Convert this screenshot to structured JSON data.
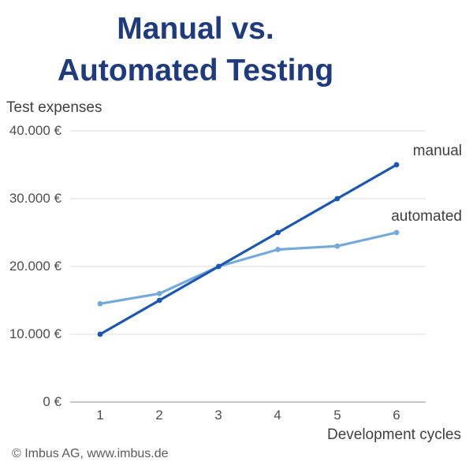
{
  "header": {
    "title_lines": [
      "Manual vs.",
      "Automated Testing"
    ],
    "title_color": "#1f3a7d"
  },
  "footer": {
    "copyright": "© Imbus AG, www.imbus.de"
  },
  "chart_data": {
    "type": "line",
    "title": "Manual vs. Automated Testing",
    "ylabel": "Test expenses",
    "xlabel": "Development cycles",
    "x": [
      1,
      2,
      3,
      4,
      5,
      6
    ],
    "xticks": [
      "1",
      "2",
      "3",
      "4",
      "5",
      "6"
    ],
    "series": [
      {
        "name": "manual",
        "color": "#1b57b2",
        "values": [
          10000,
          15000,
          20000,
          25000,
          30000,
          35000
        ]
      },
      {
        "name": "automated",
        "color": "#74a9db",
        "values": [
          14500,
          16000,
          20000,
          22500,
          23000,
          25000
        ]
      }
    ],
    "yticks": [
      {
        "value": 0,
        "label": "0 €"
      },
      {
        "value": 10000,
        "label": "10.000 €"
      },
      {
        "value": 20000,
        "label": "20.000 €"
      },
      {
        "value": 30000,
        "label": "30.000 €"
      },
      {
        "value": 40000,
        "label": "40.000 €"
      }
    ],
    "ylim": [
      0,
      40000
    ],
    "grid": true,
    "gridline_color": "#e4e4e4",
    "axisline_color": "#b3b3b3",
    "legend_position": "line-end-labels"
  }
}
